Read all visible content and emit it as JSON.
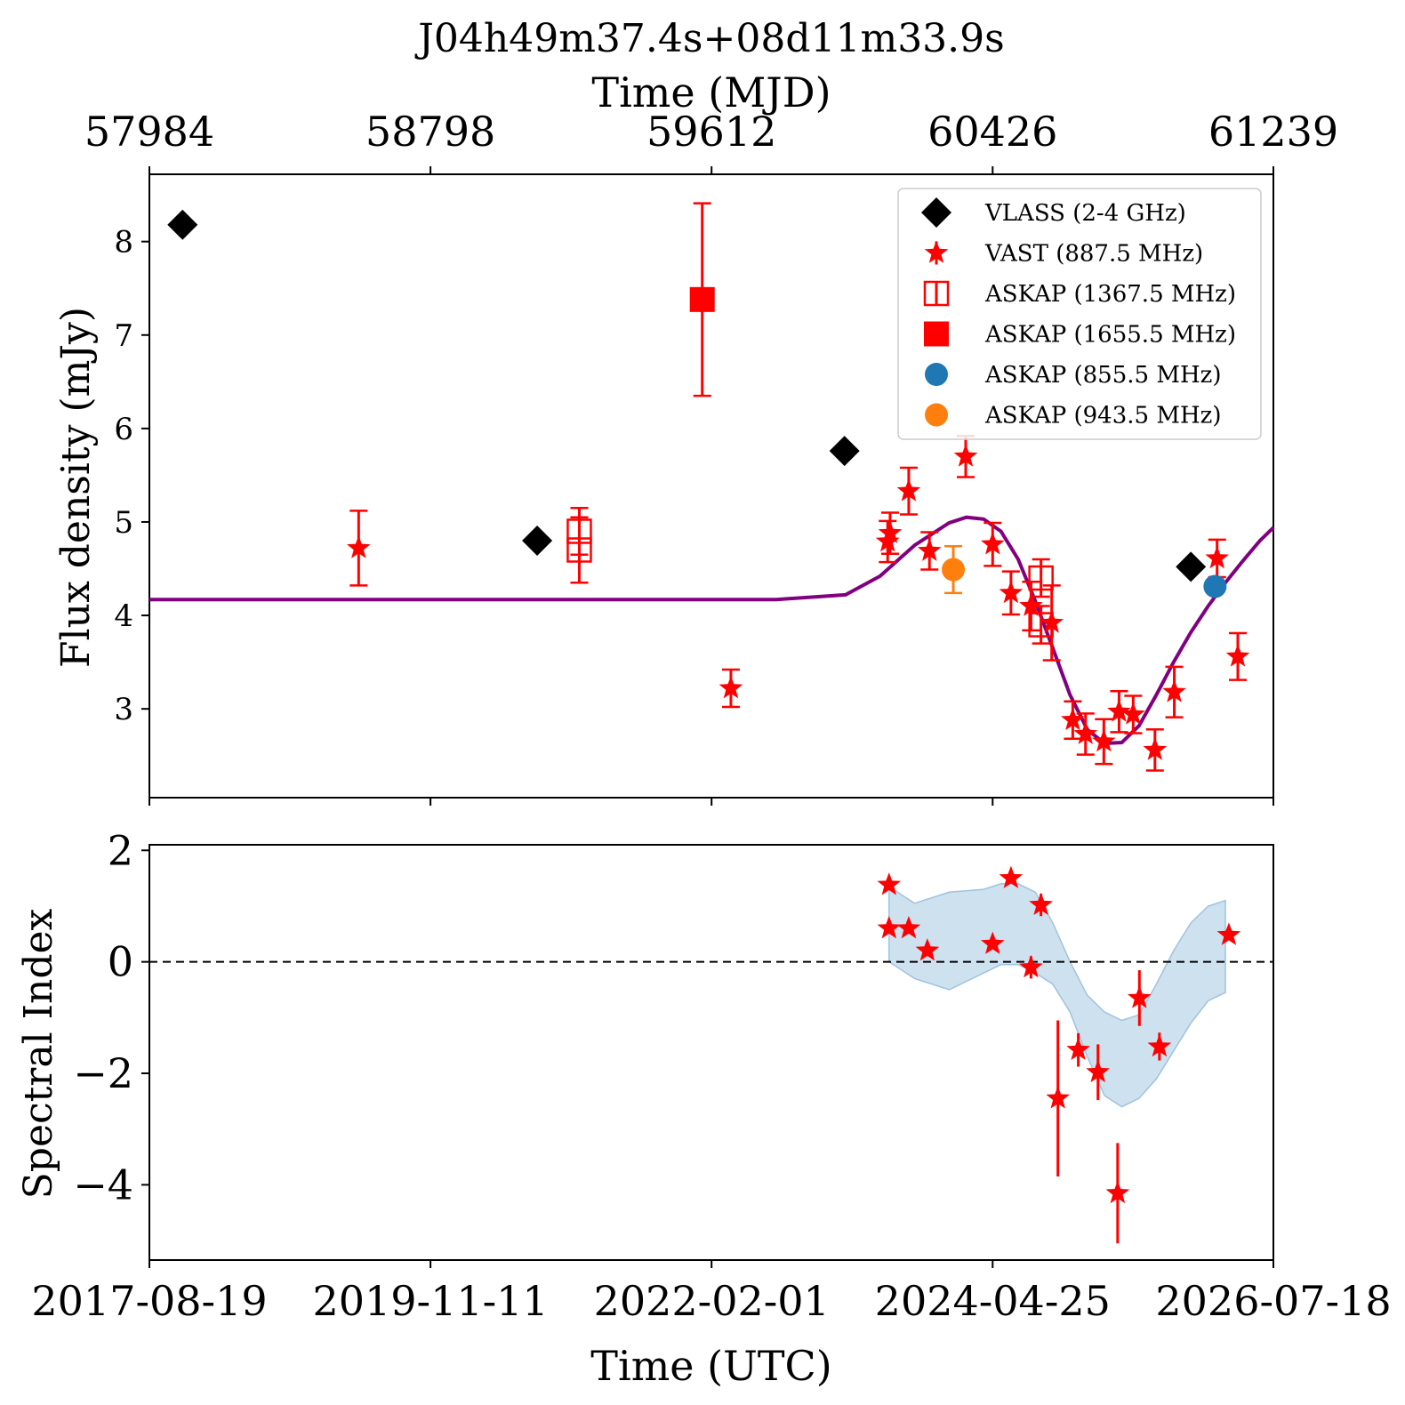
{
  "title": "J04h49m37.4s+08d11m33.9s",
  "colors": {
    "vlass": "#000000",
    "vast": "#ff0000",
    "askap1367": "#ff0000",
    "askap1655": "#ff0000",
    "askap855": "#1f77b4",
    "askap943": "#ff7f0e",
    "model": "#800080",
    "band": "#9ec3e0"
  },
  "chart_data": [
    {
      "type": "scatter",
      "panel": "top",
      "title": "J04h49m37.4s+08d11m33.9s",
      "xlabel_top": "Time (MJD)",
      "ylabel": "Flux density (mJy)",
      "xlim_mjd": [
        57984,
        61239
      ],
      "ylim": [
        2.05,
        8.72
      ],
      "top_ticks": [
        "57984",
        "58798",
        "59612",
        "60426",
        "61239"
      ],
      "top_tick_values": [
        57984,
        58798,
        59612,
        60426,
        61239
      ],
      "y_ticks": [
        3,
        4,
        5,
        6,
        7,
        8
      ],
      "y_tick_labels": [
        "3",
        "4",
        "5",
        "6",
        "7",
        "8"
      ],
      "legend_position": "top-right",
      "legend": [
        {
          "label": "VLASS (2-4 GHz)",
          "marker": "diamond",
          "color": "#000000"
        },
        {
          "label": "VAST (887.5 MHz)",
          "marker": "star",
          "color": "#ff0000"
        },
        {
          "label": "ASKAP (1367.5 MHz)",
          "marker": "open-square",
          "color": "#ff0000"
        },
        {
          "label": "ASKAP (1655.5 MHz)",
          "marker": "square",
          "color": "#ff0000"
        },
        {
          "label": "ASKAP (855.5 MHz)",
          "marker": "circle",
          "color": "#1f77b4"
        },
        {
          "label": "ASKAP (943.5 MHz)",
          "marker": "circle",
          "color": "#ff7f0e"
        }
      ],
      "series": [
        {
          "name": "VLASS (2-4 GHz)",
          "marker": "diamond",
          "color": "#000000",
          "x": [
            58080,
            59107,
            59997,
            61000
          ],
          "y": [
            8.18,
            4.8,
            5.76,
            4.52
          ],
          "err": [
            0.05,
            0.05,
            0.05,
            0.05
          ]
        },
        {
          "name": "VAST (887.5 MHz)",
          "marker": "star",
          "color": "#ff0000",
          "x": [
            58590,
            59668,
            60122,
            60129,
            60183,
            60243,
            60348,
            60426,
            60479,
            60537,
            60597,
            60658,
            60695,
            60748,
            60792,
            60833,
            60896,
            60952,
            61076,
            61136
          ],
          "y": [
            4.72,
            3.22,
            4.79,
            4.88,
            5.33,
            4.69,
            5.7,
            4.76,
            4.24,
            4.1,
            3.92,
            2.88,
            2.73,
            2.65,
            2.97,
            2.94,
            2.56,
            3.18,
            4.61,
            3.56
          ],
          "err": [
            0.4,
            0.2,
            0.22,
            0.22,
            0.25,
            0.2,
            0.22,
            0.23,
            0.23,
            0.26,
            0.4,
            0.2,
            0.22,
            0.24,
            0.22,
            0.2,
            0.22,
            0.27,
            0.2,
            0.25
          ]
        },
        {
          "name": "ASKAP (1367.5 MHz)",
          "marker": "open-square",
          "color": "#ff0000",
          "x": [
            59229,
            59229,
            60566,
            60566
          ],
          "y": [
            4.7,
            4.9,
            3.9,
            4.4
          ],
          "err": [
            0.35,
            0.25,
            0.2,
            0.2
          ]
        },
        {
          "name": "ASKAP (1655.5 MHz)",
          "marker": "square",
          "color": "#ff0000",
          "x": [
            59585
          ],
          "y": [
            7.38
          ],
          "err": [
            1.03
          ]
        },
        {
          "name": "ASKAP (855.5 MHz)",
          "marker": "circle",
          "color": "#1f77b4",
          "x": [
            61070
          ],
          "y": [
            4.31
          ],
          "err": [
            0.05
          ]
        },
        {
          "name": "ASKAP (943.5 MHz)",
          "marker": "circle",
          "color": "#ff7f0e",
          "x": [
            60312
          ],
          "y": [
            4.49
          ],
          "err": [
            0.25
          ]
        }
      ],
      "model_curve": {
        "color": "#800080",
        "x": [
          57984,
          58500,
          59000,
          59500,
          59800,
          60000,
          60100,
          60200,
          60300,
          60350,
          60400,
          60450,
          60500,
          60550,
          60600,
          60650,
          60700,
          60750,
          60800,
          60850,
          60900,
          60950,
          61000,
          61050,
          61100,
          61150,
          61200,
          61239
        ],
        "y": [
          4.17,
          4.17,
          4.17,
          4.17,
          4.17,
          4.22,
          4.42,
          4.75,
          4.99,
          5.05,
          5.03,
          4.9,
          4.6,
          4.15,
          3.65,
          3.15,
          2.78,
          2.63,
          2.64,
          2.82,
          3.15,
          3.5,
          3.82,
          4.1,
          4.35,
          4.58,
          4.8,
          4.94
        ]
      }
    },
    {
      "type": "scatter",
      "panel": "bottom",
      "xlabel": "Time (UTC)",
      "ylabel": "Spectral Index",
      "ylim": [
        -5.35,
        2.1
      ],
      "x_ticks": [
        "2017-08-19",
        "2019-11-11",
        "2022-02-01",
        "2024-04-25",
        "2026-07-18"
      ],
      "x_tick_values": [
        57984,
        58798,
        59612,
        60426,
        61239
      ],
      "y_ticks": [
        -4,
        -2,
        0,
        2
      ],
      "y_tick_labels": [
        "−4",
        "−2",
        "0",
        "2"
      ],
      "reference_line_y": 0,
      "series": [
        {
          "name": "Spectral index",
          "marker": "star",
          "color": "#ff0000",
          "x": [
            58080,
            60126,
            60183,
            60237,
            60426,
            60479,
            60537,
            60566,
            60615,
            60674,
            60731,
            60788,
            60851,
            60909,
            61110,
            60126
          ],
          "y": [
            null,
            0.6,
            0.6,
            0.2,
            0.32,
            1.5,
            -0.1,
            1.02,
            -2.45,
            -1.58,
            -1.98,
            -4.15,
            -0.65,
            -1.52,
            0.48,
            1.38
          ],
          "err": [
            null,
            0.1,
            0.1,
            0.1,
            0.1,
            0.1,
            0.2,
            0.2,
            1.4,
            0.3,
            0.5,
            0.9,
            0.5,
            0.25,
            0.1,
            0.1
          ]
        }
      ],
      "band": {
        "x": [
          60126,
          60200,
          60300,
          60400,
          60450,
          60500,
          60550,
          60600,
          60650,
          60700,
          60750,
          60800,
          60850,
          60900,
          60950,
          61000,
          61050,
          61100
        ],
        "upper": [
          1.35,
          1.05,
          1.25,
          1.3,
          1.4,
          1.4,
          1.25,
          0.7,
          0.0,
          -0.6,
          -0.9,
          -1.05,
          -0.95,
          -0.4,
          0.2,
          0.7,
          1.0,
          1.1
        ],
        "lower": [
          0.0,
          -0.3,
          -0.5,
          -0.2,
          -0.05,
          -0.05,
          -0.2,
          -0.4,
          -0.9,
          -1.7,
          -2.4,
          -2.6,
          -2.45,
          -2.1,
          -1.6,
          -1.1,
          -0.7,
          -0.55
        ]
      }
    }
  ]
}
